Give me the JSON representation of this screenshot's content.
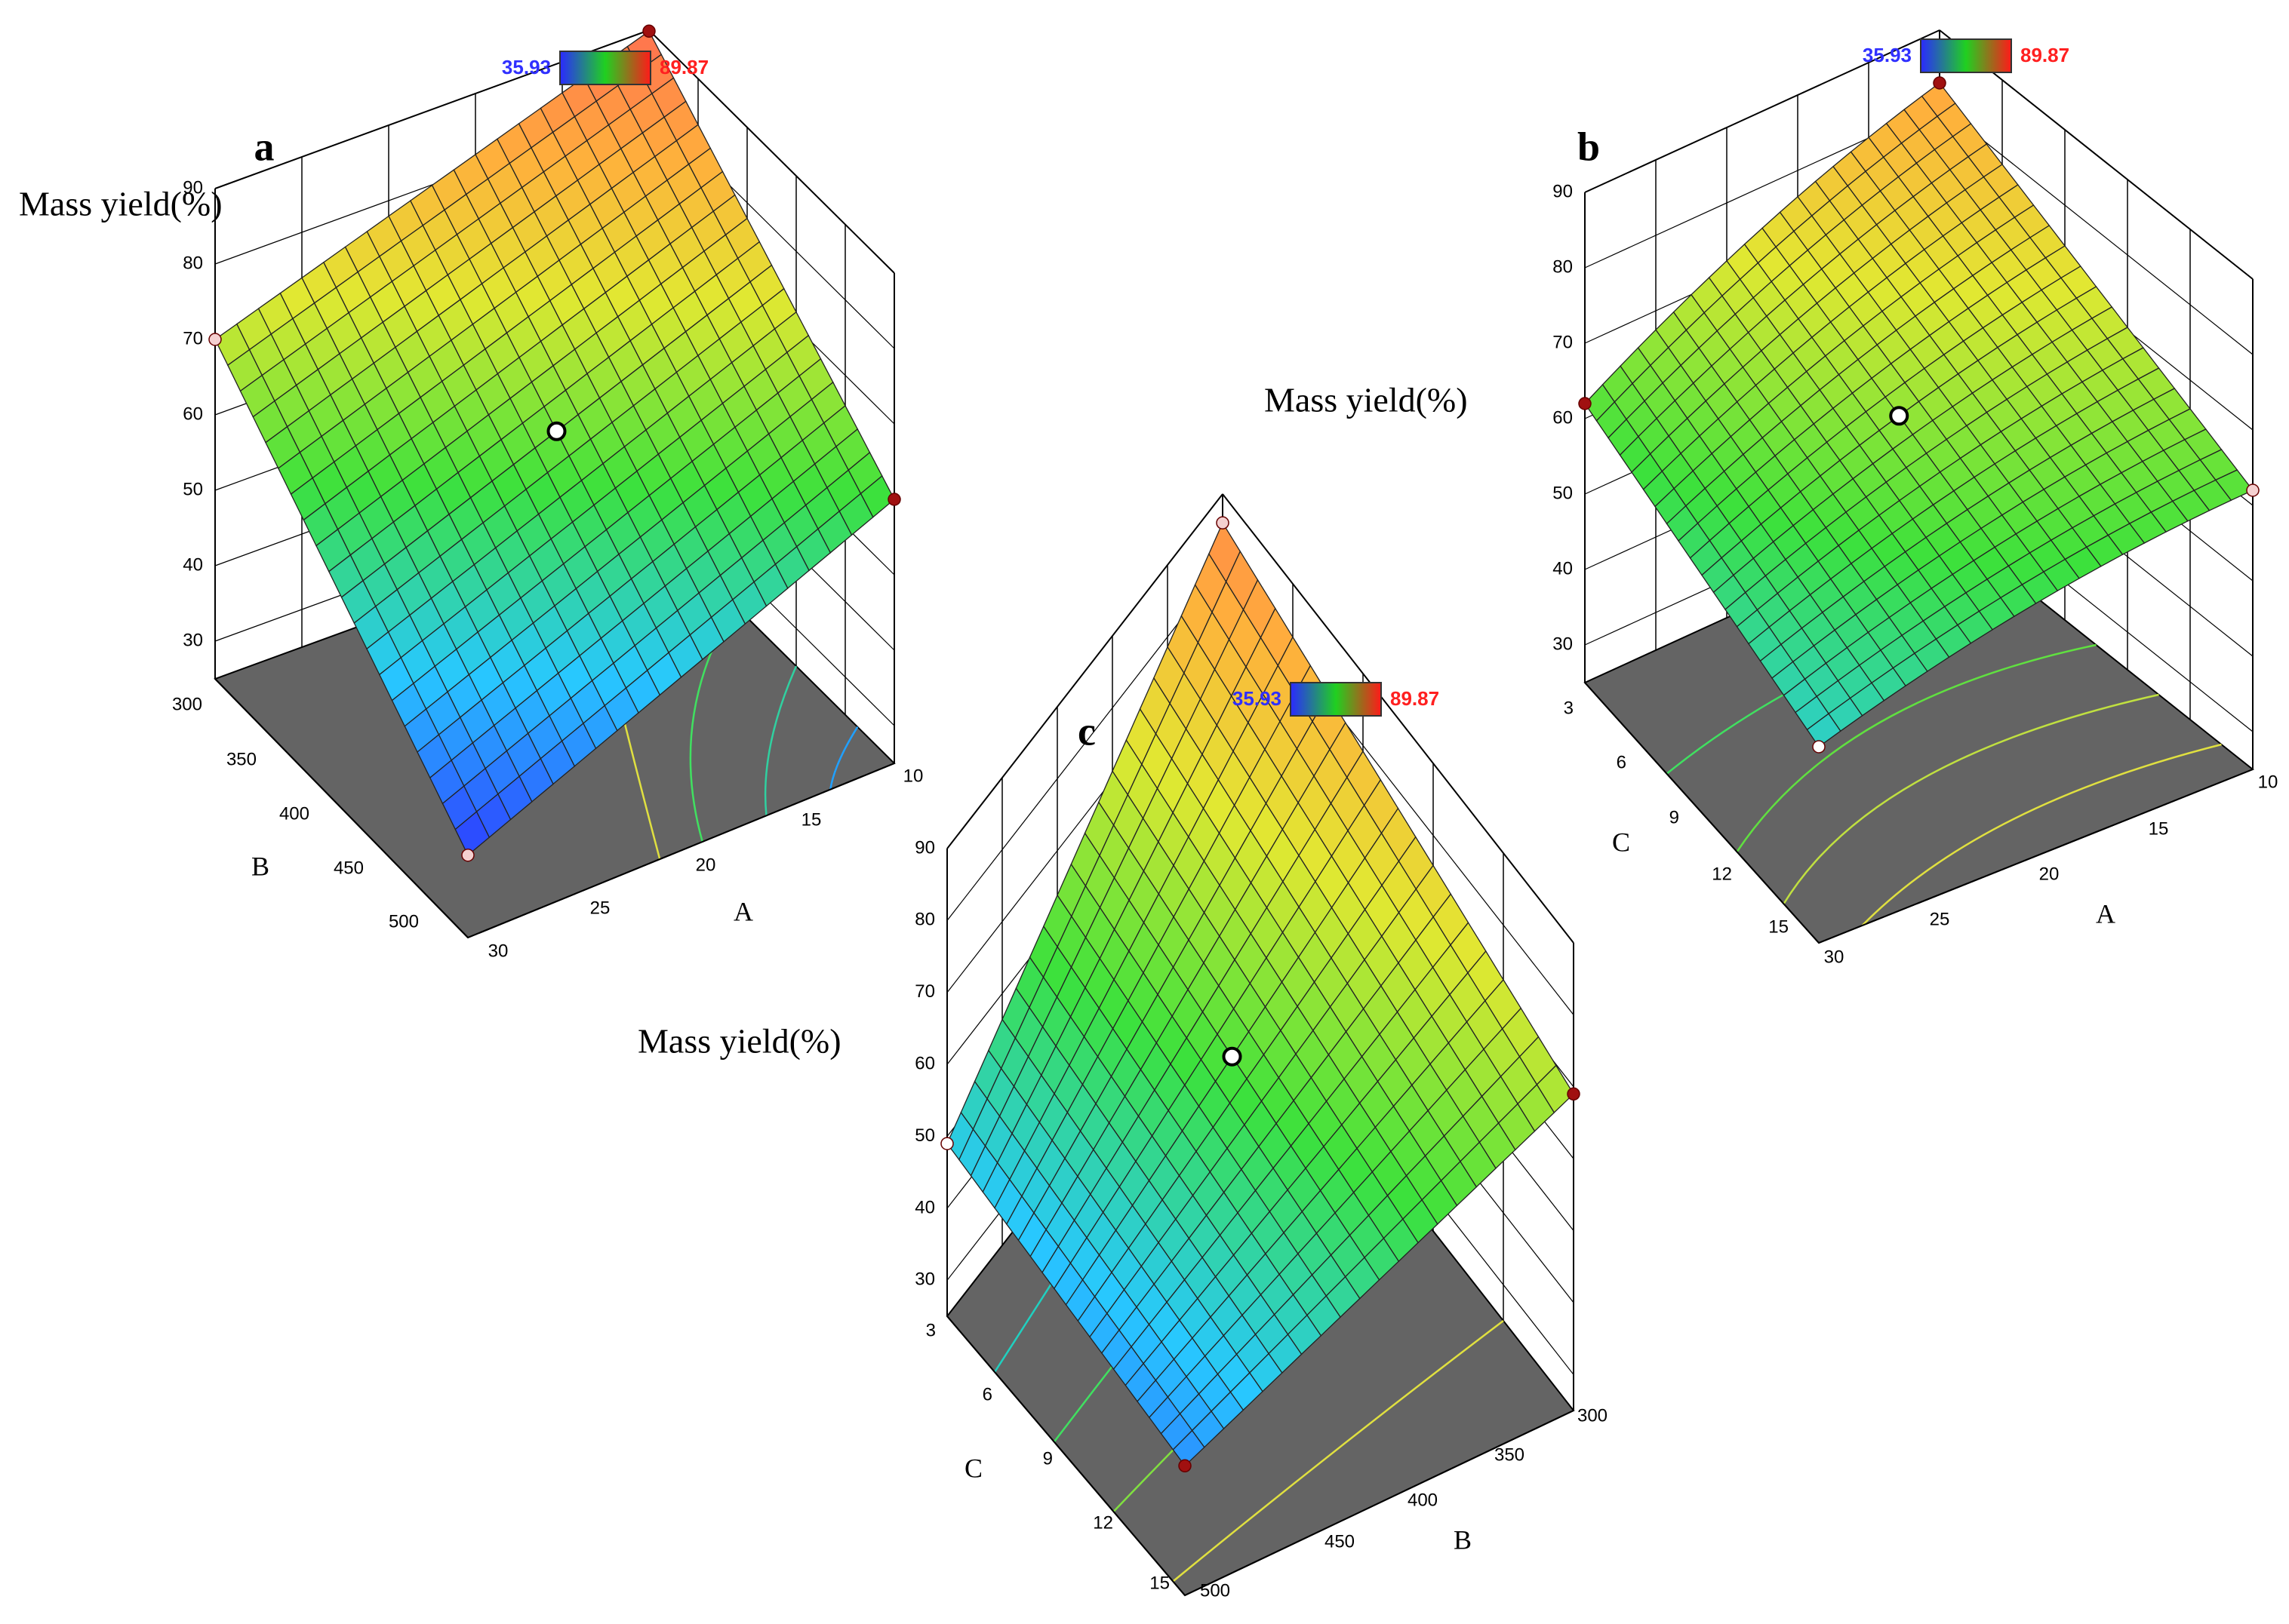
{
  "colors": {
    "low": "#3030ff",
    "high": "#ff2020",
    "floor": "#646464",
    "axis": "#000000"
  },
  "chart_data": [
    {
      "panel": "a",
      "type": "surface3d",
      "zlabel": "Mass yield(%)",
      "xlabel": "A",
      "ylabel": "B",
      "zticks": [
        "30",
        "40",
        "50",
        "60",
        "70",
        "80",
        "90"
      ],
      "xticks": [
        "10",
        "15",
        "20",
        "25",
        "30"
      ],
      "yticks": [
        "300",
        "350",
        "400",
        "450",
        "500"
      ],
      "colorbar": {
        "min": "35.93",
        "max": "89.87"
      },
      "corners": [
        {
          "x": "A=10",
          "y": "B=300",
          "z": 89.87
        },
        {
          "x": "A=30",
          "y": "B=300",
          "z": 70
        },
        {
          "x": "A=10",
          "y": "B=500",
          "z": 60
        },
        {
          "x": "A=30",
          "y": "B=500",
          "z": 35.93
        }
      ]
    },
    {
      "panel": "b",
      "type": "surface3d",
      "zlabel": "Mass yield(%)",
      "xlabel": "A",
      "ylabel": "C",
      "zticks": [
        "30",
        "40",
        "50",
        "60",
        "70",
        "80",
        "90"
      ],
      "xticks": [
        "10",
        "15",
        "20",
        "25",
        "30"
      ],
      "yticks": [
        "3",
        "6",
        "9",
        "12",
        "15"
      ],
      "colorbar": {
        "min": "35.93",
        "max": "89.87"
      },
      "corners": [
        {
          "x": "A=10",
          "y": "C=3",
          "z": 83
        },
        {
          "x": "A=30",
          "y": "C=3",
          "z": 62
        },
        {
          "x": "A=10",
          "y": "C=15",
          "z": 62
        },
        {
          "x": "A=30",
          "y": "C=15",
          "z": 51
        }
      ]
    },
    {
      "panel": "c",
      "type": "surface3d",
      "zlabel": "Mass yield(%)",
      "xlabel": "B",
      "ylabel": "C",
      "zticks": [
        "30",
        "40",
        "50",
        "60",
        "70",
        "80",
        "90"
      ],
      "xticks": [
        "300",
        "350",
        "400",
        "450",
        "500"
      ],
      "yticks": [
        "3",
        "6",
        "9",
        "12",
        "15"
      ],
      "colorbar": {
        "min": "35.93",
        "max": "89.87"
      },
      "corners": [
        {
          "x": "B=300",
          "y": "C=3",
          "z": 86
        },
        {
          "x": "B=500",
          "y": "C=3",
          "z": 49
        },
        {
          "x": "B=300",
          "y": "C=15",
          "z": 69
        },
        {
          "x": "B=500",
          "y": "C=15",
          "z": 43
        }
      ]
    }
  ]
}
